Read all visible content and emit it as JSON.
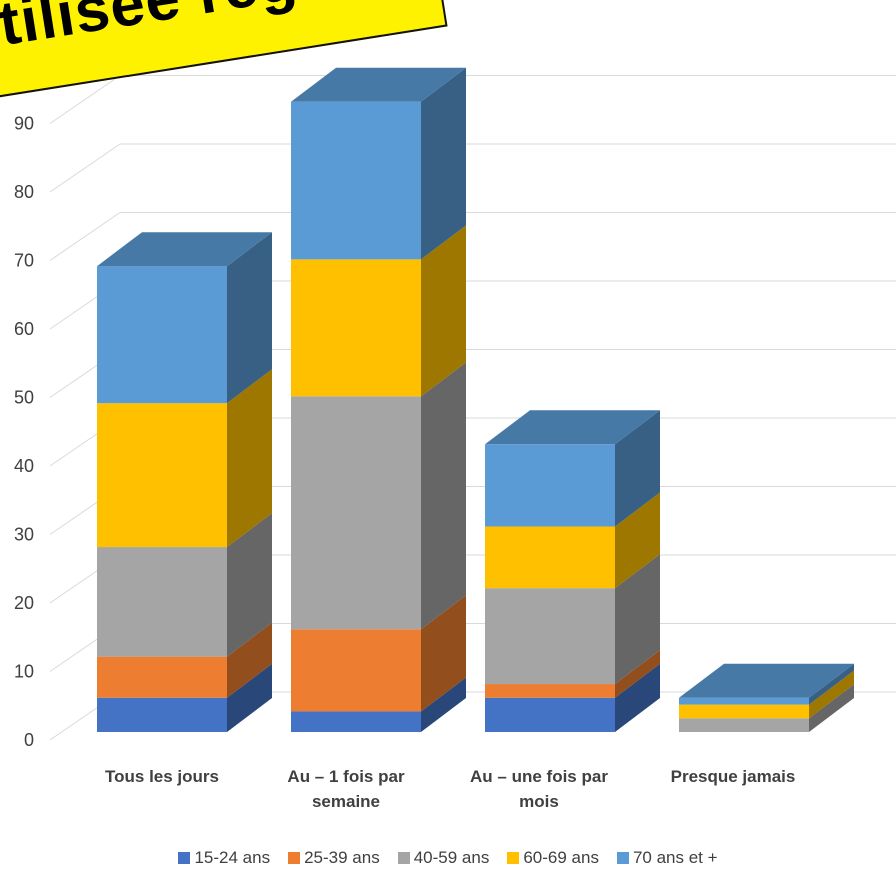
{
  "chart_data": {
    "type": "bar",
    "stacked": true,
    "three_d": true,
    "categories": [
      "Tous les jours",
      "Au – 1 fois par semaine",
      "Au – une fois par mois",
      "Presque jamais"
    ],
    "series": [
      {
        "name": "15-24 ans",
        "color": "#4472C4",
        "values": [
          5,
          3,
          5,
          0
        ]
      },
      {
        "name": "25-39 ans",
        "color": "#ED7D31",
        "values": [
          6,
          12,
          2,
          0
        ]
      },
      {
        "name": "40-59 ans",
        "color": "#A5A5A5",
        "values": [
          16,
          34,
          14,
          2
        ]
      },
      {
        "name": "60-69 ans",
        "color": "#FFC000",
        "values": [
          21,
          20,
          9,
          2
        ]
      },
      {
        "name": "70 ans et +",
        "color": "#5B9BD5",
        "values": [
          20,
          23,
          12,
          1
        ]
      }
    ],
    "yticks": [
      0,
      10,
      20,
      30,
      40,
      50,
      60,
      70,
      80,
      90
    ],
    "ylim": [
      0,
      100
    ],
    "grid": true,
    "legend": "bottom",
    "banner_text": "tilisée régu"
  },
  "categories_display": [
    {
      "line1": "Tous les jours",
      "line2": ""
    },
    {
      "line1": "Au – 1 fois par",
      "line2": "semaine"
    },
    {
      "line1": "Au – une fois par",
      "line2": "mois"
    },
    {
      "line1": "Presque jamais",
      "line2": ""
    }
  ]
}
